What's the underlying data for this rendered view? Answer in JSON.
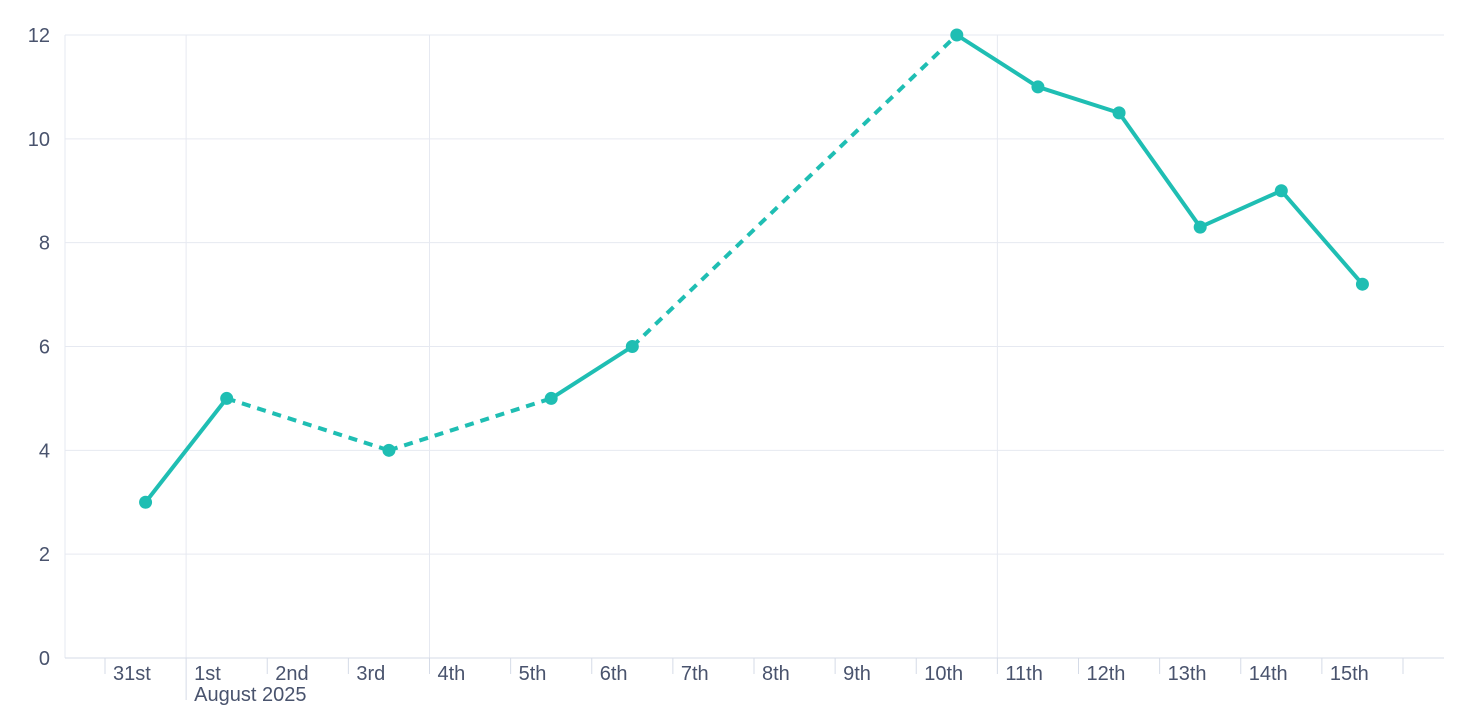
{
  "chart_data": {
    "type": "line",
    "title": "",
    "legend": "none",
    "x_axis": {
      "tick_labels": [
        "31st",
        "1st",
        "2nd",
        "3rd",
        "4th",
        "5th",
        "6th",
        "7th",
        "8th",
        "9th",
        "10th",
        "11th",
        "12th",
        "13th",
        "14th",
        "15th"
      ],
      "secondary_label": "August 2025",
      "secondary_label_anchor": "1st",
      "vertical_gridlines_at": [
        "1st",
        "4th",
        "11th"
      ]
    },
    "y_axis": {
      "tick_labels": [
        0,
        2,
        4,
        6,
        8,
        10,
        12
      ],
      "min": 0,
      "max": 12
    },
    "series": [
      {
        "name": "",
        "color": "#1fbeb3",
        "values": [
          3,
          5,
          null,
          4,
          null,
          5,
          6,
          null,
          null,
          null,
          12,
          11,
          10.5,
          8.3,
          9,
          7.2
        ],
        "gap_style": "dashed-interpolation",
        "marker": "filled-circle"
      }
    ]
  },
  "colors": {
    "accent": "#1fbeb3",
    "gridline": "#e6e9f1",
    "axis": "#d5dbe7",
    "label": "#49536d",
    "background": "#ffffff"
  }
}
